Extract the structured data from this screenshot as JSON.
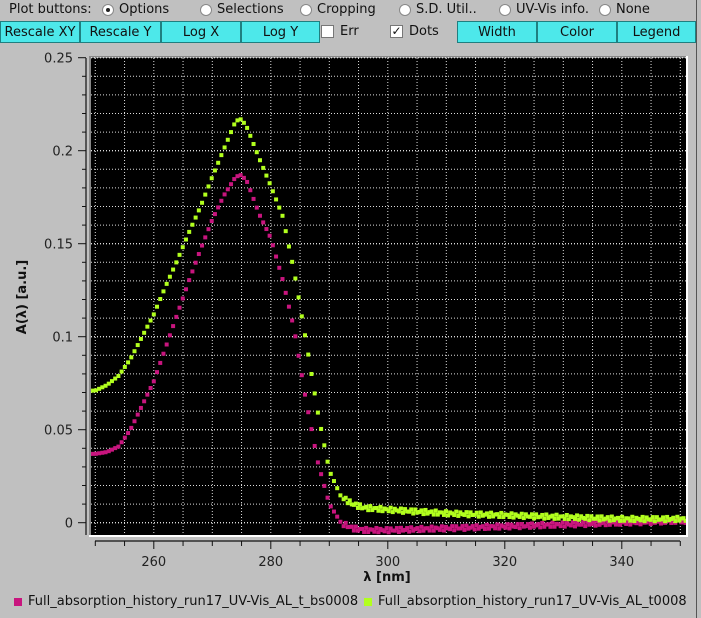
{
  "toolbar": {
    "plot_buttons_label": "Plot buttons:",
    "radios": [
      {
        "label": "Options",
        "selected": true
      },
      {
        "label": "Selections",
        "selected": false
      },
      {
        "label": "Cropping",
        "selected": false
      },
      {
        "label": "S.D. Util..",
        "selected": false
      },
      {
        "label": "UV-Vis info.",
        "selected": false
      },
      {
        "label": "None",
        "selected": false
      }
    ],
    "buttons": [
      {
        "label": "Rescale XY"
      },
      {
        "label": "Rescale Y"
      },
      {
        "label": "Log X"
      },
      {
        "label": "Log Y"
      },
      {
        "label": "Width"
      },
      {
        "label": "Color"
      },
      {
        "label": "Legend"
      }
    ],
    "checkboxes": [
      {
        "label": "Err",
        "checked": false
      },
      {
        "label": "Dots",
        "checked": true
      }
    ]
  },
  "plot": {
    "background": "#000000",
    "xlabel": "λ [nm]",
    "ylabel": "A(λ) [a.u.]",
    "x_ticks": [
      "260",
      "280",
      "300",
      "320",
      "340"
    ],
    "y_ticks": [
      "0",
      "0.05",
      "0.1",
      "0.15",
      "0.2",
      "0.25"
    ]
  },
  "legend": [
    {
      "label": "Full_absorption_history_run17_UV-Vis_AL_t_bs0008",
      "color": "#c8157e"
    },
    {
      "label": "Full_absorption_history_run17_UV-Vis_AL_t0008",
      "color": "#b2ff1e"
    }
  ],
  "chart_data": {
    "type": "scatter",
    "title": "",
    "xlabel": "λ [nm]",
    "ylabel": "A(λ) [a.u.]",
    "xlim": [
      250,
      350
    ],
    "ylim": [
      -0.005,
      0.25
    ],
    "grid": true,
    "legend_position": "bottom",
    "x": [
      250,
      252,
      254,
      256,
      258,
      260,
      262,
      264,
      266,
      268,
      270,
      272,
      274,
      275,
      276,
      278,
      280,
      282,
      284,
      286,
      288,
      290,
      292,
      294,
      296,
      300,
      310,
      320,
      330,
      340,
      350
    ],
    "series": [
      {
        "name": "Full_absorption_history_run17_UV-Vis_AL_t_bs0008",
        "color": "#c8157e",
        "values": [
          0.037,
          0.038,
          0.041,
          0.05,
          0.063,
          0.076,
          0.094,
          0.112,
          0.13,
          0.147,
          0.163,
          0.176,
          0.186,
          0.187,
          0.183,
          0.166,
          0.153,
          0.131,
          0.104,
          0.066,
          0.033,
          0.01,
          0.0,
          -0.003,
          -0.004,
          -0.004,
          -0.003,
          -0.002,
          -0.001,
          0.0,
          0.001
        ]
      },
      {
        "name": "Full_absorption_history_run17_UV-Vis_AL_t0008",
        "color": "#b2ff1e",
        "values": [
          0.071,
          0.074,
          0.079,
          0.088,
          0.1,
          0.112,
          0.127,
          0.141,
          0.156,
          0.17,
          0.186,
          0.201,
          0.216,
          0.217,
          0.212,
          0.196,
          0.181,
          0.165,
          0.135,
          0.098,
          0.06,
          0.028,
          0.014,
          0.01,
          0.008,
          0.007,
          0.005,
          0.004,
          0.003,
          0.002,
          0.002
        ]
      }
    ]
  }
}
